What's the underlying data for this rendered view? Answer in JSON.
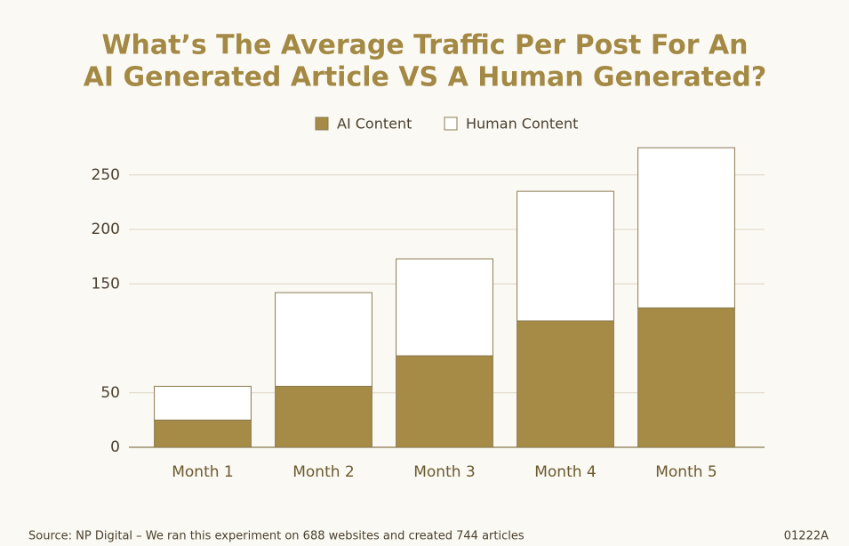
{
  "chart_data": {
    "type": "stacked_bar",
    "title": [
      "What’s The Average Traffic Per Post For An",
      "AI Generated Article VS A Human Generated?"
    ],
    "categories": [
      "Month 1",
      "Month 2",
      "Month 3",
      "Month 4",
      "Month 5"
    ],
    "series": [
      {
        "name": "AI Content",
        "color": "#a68b47",
        "values": [
          25,
          56,
          84,
          116,
          128
        ]
      },
      {
        "name": "Human Content",
        "color": "#ffffff",
        "values": [
          31,
          86,
          89,
          119,
          147
        ]
      }
    ],
    "ylim": [
      0,
      280
    ],
    "yticks": [
      0,
      50,
      150,
      200,
      250
    ],
    "grid": true,
    "legend": "top",
    "source": "Source: NP Digital – We ran this experiment on 688 websites and created 744 articles",
    "code": "01222A"
  }
}
